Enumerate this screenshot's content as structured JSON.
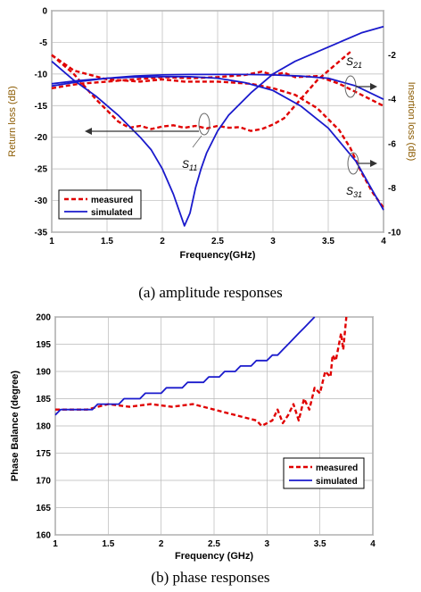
{
  "colors": {
    "measured": "#e00000",
    "simulated": "#1a1acc",
    "grid": "#b8b8b8"
  },
  "chart_data": [
    {
      "type": "line",
      "caption": "(a) amplitude responses",
      "xlabel": "Frequency(GHz)",
      "ylabel": "Return loss (dB)",
      "ylabel_right": "Insertion loss (dB)",
      "xlim": [
        1,
        4
      ],
      "ylim": [
        -35,
        0
      ],
      "ylim_right": [
        -10,
        0
      ],
      "xticks": [
        "1",
        "1.5",
        "2",
        "2.5",
        "3",
        "3.5",
        "4"
      ],
      "yticks": [
        "0",
        "-5",
        "-10",
        "-15",
        "-20",
        "-25",
        "-30",
        "-35"
      ],
      "yticks_right": [
        "-2",
        "-4",
        "-6",
        "-8",
        "-10"
      ],
      "grid": true,
      "legend": {
        "position": "bottom-left",
        "entries": [
          "measured",
          "simulated"
        ]
      },
      "annotations": [
        {
          "text": "S",
          "sub": "11"
        },
        {
          "text": "S",
          "sub": "21"
        },
        {
          "text": "S",
          "sub": "31"
        }
      ],
      "series": [
        {
          "name": "measured",
          "label": "S11",
          "axis": "left",
          "x": [
            1,
            1.2,
            1.4,
            1.6,
            1.7,
            1.8,
            1.9,
            2,
            2.1,
            2.2,
            2.3,
            2.4,
            2.5,
            2.6,
            2.7,
            2.8,
            2.9,
            3,
            3.1,
            3.2,
            3.3,
            3.4,
            3.5,
            3.6,
            3.7
          ],
          "y": [
            -7,
            -10,
            -14,
            -17.5,
            -18.5,
            -18.2,
            -18.7,
            -18.3,
            -18.1,
            -18.5,
            -18.2,
            -18.6,
            -18.2,
            -18.5,
            -18.4,
            -19,
            -18.7,
            -18,
            -17,
            -15,
            -13,
            -11,
            -9.5,
            -8,
            -6.5
          ]
        },
        {
          "name": "measured",
          "label": "S21",
          "axis": "right",
          "x": [
            1,
            1.25,
            1.5,
            1.75,
            2,
            2.25,
            2.5,
            2.75,
            2.9,
            3,
            3.1,
            3.2,
            3.4,
            3.6,
            3.8,
            4
          ],
          "y": [
            -3.5,
            -3.3,
            -3.2,
            -3.1,
            -3.0,
            -3.05,
            -3.0,
            -2.9,
            -2.75,
            -2.9,
            -2.8,
            -3.0,
            -2.95,
            -3.3,
            -3.8,
            -4.3
          ]
        },
        {
          "name": "measured",
          "label": "S31",
          "axis": "right",
          "x": [
            1,
            1.2,
            1.5,
            1.8,
            2,
            2.2,
            2.5,
            2.8,
            3,
            3.2,
            3.4,
            3.6,
            3.7,
            3.8,
            3.9,
            4
          ],
          "y": [
            -2.0,
            -2.7,
            -3.1,
            -3.2,
            -3.1,
            -3.2,
            -3.2,
            -3.3,
            -3.5,
            -3.8,
            -4.4,
            -5.4,
            -6.2,
            -7.3,
            -8.2,
            -8.9
          ]
        },
        {
          "name": "simulated",
          "label": "S11",
          "axis": "left",
          "x": [
            1,
            1.2,
            1.4,
            1.6,
            1.8,
            1.9,
            2,
            2.1,
            2.15,
            2.2,
            2.25,
            2.3,
            2.35,
            2.4,
            2.5,
            2.6,
            2.8,
            3,
            3.2,
            3.4,
            3.6,
            3.8,
            4
          ],
          "y": [
            -8,
            -11,
            -13.5,
            -16.5,
            -20,
            -22,
            -25,
            -29,
            -31.5,
            -34,
            -32,
            -28,
            -25,
            -22.5,
            -19,
            -16.5,
            -13,
            -10,
            -8,
            -6.5,
            -5,
            -3.5,
            -2.5
          ]
        },
        {
          "name": "simulated",
          "label": "S21",
          "axis": "right",
          "x": [
            1,
            1.25,
            1.5,
            1.75,
            2,
            2.25,
            2.5,
            2.75,
            3,
            3.25,
            3.5,
            3.75,
            4
          ],
          "y": [
            -3.4,
            -3.2,
            -3.05,
            -2.95,
            -2.9,
            -2.88,
            -2.88,
            -2.88,
            -2.9,
            -2.95,
            -3.05,
            -3.4,
            -4.0
          ]
        },
        {
          "name": "simulated",
          "label": "S31",
          "axis": "right",
          "x": [
            1,
            1.25,
            1.5,
            1.75,
            2,
            2.25,
            2.5,
            2.75,
            3,
            3.25,
            3.5,
            3.75,
            4
          ],
          "y": [
            -3.3,
            -3.15,
            -3.05,
            -3.0,
            -2.98,
            -2.98,
            -3.05,
            -3.25,
            -3.6,
            -4.3,
            -5.3,
            -6.8,
            -9.0
          ]
        }
      ]
    },
    {
      "type": "line",
      "caption": "(b) phase responses",
      "xlabel": "Frequency (GHz)",
      "ylabel": "Phase Balance (degree)",
      "xlim": [
        1,
        4
      ],
      "ylim": [
        160,
        200
      ],
      "xticks": [
        "1",
        "1.5",
        "2",
        "2.5",
        "3",
        "3.5",
        "4"
      ],
      "yticks": [
        "200",
        "195",
        "190",
        "185",
        "180",
        "175",
        "170",
        "165",
        "160"
      ],
      "grid": true,
      "legend": {
        "position": "lower-right",
        "entries": [
          "measured",
          "simulated"
        ]
      },
      "series": [
        {
          "name": "measured",
          "x": [
            1,
            1.3,
            1.5,
            1.7,
            1.9,
            2.1,
            2.3,
            2.5,
            2.6,
            2.7,
            2.8,
            2.9,
            2.95,
            3.0,
            3.05,
            3.1,
            3.15,
            3.2,
            3.25,
            3.3,
            3.35,
            3.4,
            3.45,
            3.5,
            3.55,
            3.6,
            3.62,
            3.65,
            3.7,
            3.72,
            3.75
          ],
          "y": [
            183,
            183,
            184,
            183.5,
            184,
            183.5,
            184,
            183,
            182.5,
            182,
            181.5,
            181,
            180,
            180.5,
            181,
            183,
            180.5,
            182,
            184,
            181,
            185,
            183,
            187,
            186,
            190,
            189,
            193,
            192,
            197,
            194,
            200
          ]
        },
        {
          "name": "simulated",
          "x": [
            1,
            1.05,
            1.1,
            1.35,
            1.4,
            1.6,
            1.65,
            1.8,
            1.85,
            2.0,
            2.05,
            2.2,
            2.25,
            2.4,
            2.45,
            2.55,
            2.6,
            2.7,
            2.75,
            2.85,
            2.9,
            3.0,
            3.05,
            3.1,
            3.15,
            3.2,
            3.25,
            3.3,
            3.35,
            3.4,
            3.45
          ],
          "y": [
            182,
            183,
            183,
            183,
            184,
            184,
            185,
            185,
            186,
            186,
            187,
            187,
            188,
            188,
            189,
            189,
            190,
            190,
            191,
            191,
            192,
            192,
            193,
            193,
            194,
            195,
            196,
            197,
            198,
            199,
            200
          ]
        }
      ]
    }
  ]
}
